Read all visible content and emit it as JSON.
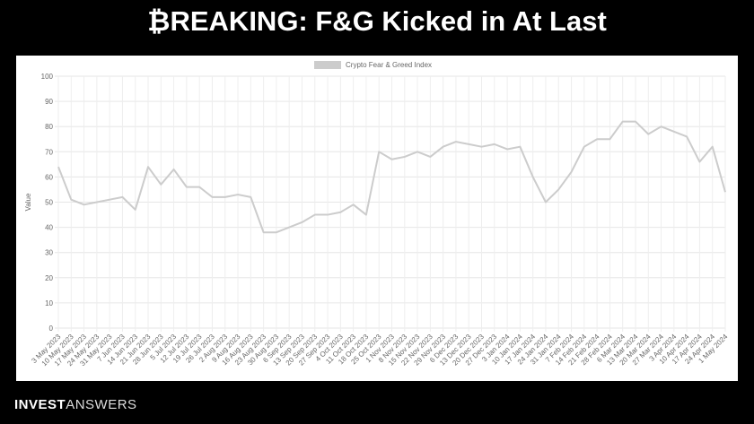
{
  "slide": {
    "title": "₿REAKING: F&G Kicked in At Last",
    "brand_bold": "INVEST",
    "brand_light": "ANSWERS"
  },
  "chart_data": {
    "type": "line",
    "y_label": "Value",
    "categories": [
      "3 May 2023",
      "10 May 2023",
      "17 May 2023",
      "24 May 2023",
      "31 May 2023",
      "7 Jun 2023",
      "14 Jun 2023",
      "21 Jun 2023",
      "28 Jun 2023",
      "5 Jul 2023",
      "12 Jul 2023",
      "19 Jul 2023",
      "26 Jul 2023",
      "2 Aug 2023",
      "9 Aug 2023",
      "16 Aug 2023",
      "23 Aug 2023",
      "30 Aug 2023",
      "6 Sep 2023",
      "13 Sep 2023",
      "20 Sep 2023",
      "27 Sep 2023",
      "4 Oct 2023",
      "11 Oct 2023",
      "18 Oct 2023",
      "25 Oct 2023",
      "1 Nov 2023",
      "8 Nov 2023",
      "15 Nov 2023",
      "22 Nov 2023",
      "29 Nov 2023",
      "6 Dec 2023",
      "13 Dec 2023",
      "20 Dec 2023",
      "27 Dec 2023",
      "3 Jan 2024",
      "10 Jan 2024",
      "17 Jan 2024",
      "24 Jan 2024",
      "31 Jan 2024",
      "7 Feb 2024",
      "14 Feb 2024",
      "21 Feb 2024",
      "28 Feb 2024",
      "6 Mar 2024",
      "13 Mar 2024",
      "20 Mar 2024",
      "27 Mar 2024",
      "3 Apr 2024",
      "10 Apr 2024",
      "17 Apr 2024",
      "24 Apr 2024",
      "1 May 2024"
    ],
    "series": [
      {
        "name": "Crypto Fear & Greed Index",
        "color": "#cccccc",
        "values": [
          64,
          51,
          49,
          50,
          51,
          52,
          47,
          64,
          57,
          63,
          56,
          56,
          52,
          52,
          53,
          52,
          38,
          38,
          40,
          42,
          45,
          45,
          46,
          49,
          45,
          70,
          67,
          68,
          70,
          68,
          72,
          74,
          73,
          72,
          73,
          71,
          72,
          60,
          50,
          55,
          62,
          72,
          75,
          75,
          82,
          82,
          77,
          80,
          78,
          76,
          66,
          72,
          54
        ]
      }
    ],
    "ylim": [
      0,
      100
    ],
    "yticks": [
      0,
      10,
      20,
      30,
      40,
      50,
      60,
      70,
      80,
      90,
      100
    ],
    "grid": true
  }
}
